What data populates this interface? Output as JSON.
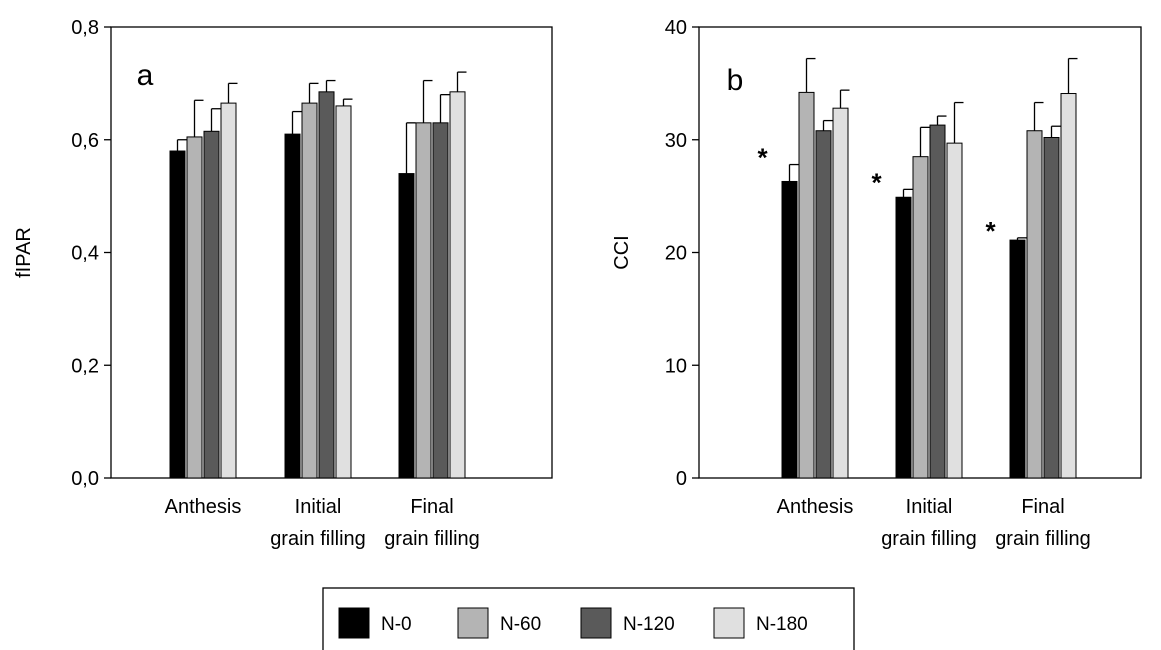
{
  "chart_data": [
    {
      "type": "bar",
      "panel_label": "a",
      "ylabel": "fIPAR",
      "xlabel": "",
      "ylim": [
        0,
        0.8
      ],
      "yticks": [
        "0,0",
        "0,2",
        "0,4",
        "0,6",
        "0,8"
      ],
      "categories": [
        [
          "Anthesis"
        ],
        [
          "Initial",
          "grain filling"
        ],
        [
          "Final",
          "grain filling"
        ]
      ],
      "series": [
        {
          "name": "N-0",
          "color": "#000000",
          "values": [
            0.58,
            0.61,
            0.54
          ],
          "errors": [
            0.02,
            0.04,
            0.09
          ]
        },
        {
          "name": "N-60",
          "color": "#b4b4b4",
          "values": [
            0.605,
            0.665,
            0.63
          ],
          "errors": [
            0.065,
            0.035,
            0.075
          ]
        },
        {
          "name": "N-120",
          "color": "#5a5a5a",
          "values": [
            0.615,
            0.685,
            0.63
          ],
          "errors": [
            0.04,
            0.02,
            0.05
          ]
        },
        {
          "name": "N-180",
          "color": "#e0e0e0",
          "values": [
            0.665,
            0.66,
            0.685
          ],
          "errors": [
            0.035,
            0.012,
            0.035
          ]
        }
      ],
      "annotations": []
    },
    {
      "type": "bar",
      "panel_label": "b",
      "ylabel": "CCI",
      "xlabel": "",
      "ylim": [
        0,
        40
      ],
      "yticks": [
        "0",
        "10",
        "20",
        "30",
        "40"
      ],
      "categories": [
        [
          "Anthesis"
        ],
        [
          "Initial",
          "grain filling"
        ],
        [
          "Final",
          "grain filling"
        ]
      ],
      "series": [
        {
          "name": "N-0",
          "color": "#000000",
          "values": [
            26.3,
            24.9,
            21.1
          ],
          "errors": [
            1.5,
            0.7,
            0.2
          ]
        },
        {
          "name": "N-60",
          "color": "#b4b4b4",
          "values": [
            34.2,
            28.5,
            30.8
          ],
          "errors": [
            3.0,
            2.6,
            2.5
          ]
        },
        {
          "name": "N-120",
          "color": "#5a5a5a",
          "values": [
            30.8,
            31.3,
            30.2
          ],
          "errors": [
            0.9,
            0.8,
            1.0
          ]
        },
        {
          "name": "N-180",
          "color": "#e0e0e0",
          "values": [
            32.8,
            29.7,
            34.1
          ],
          "errors": [
            1.6,
            3.6,
            3.1
          ]
        }
      ],
      "annotations": [
        {
          "text": "*",
          "category_index": 0
        },
        {
          "text": "*",
          "category_index": 1
        },
        {
          "text": "*",
          "category_index": 2
        }
      ]
    }
  ],
  "legend": {
    "placement": "bottom-center",
    "items": [
      {
        "label": "N-0",
        "color": "#000000"
      },
      {
        "label": "N-60",
        "color": "#b4b4b4"
      },
      {
        "label": "N-120",
        "color": "#5a5a5a"
      },
      {
        "label": "N-180",
        "color": "#e0e0e0"
      }
    ]
  }
}
